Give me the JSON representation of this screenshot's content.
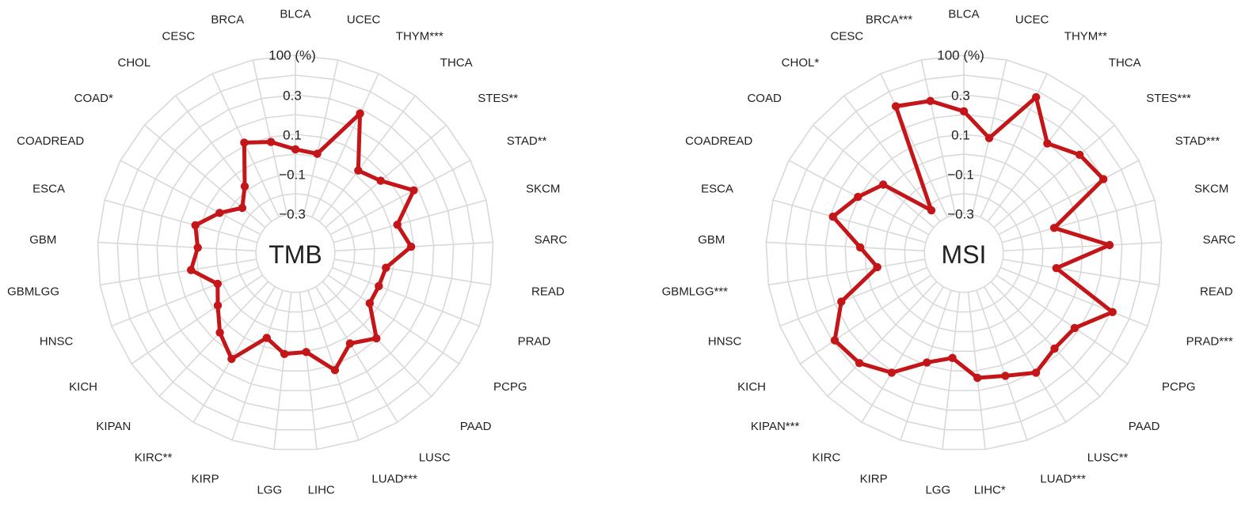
{
  "colors": {
    "line": "#c41518",
    "grid": "#d9d9d9",
    "text": "#222222",
    "background": "#ffffff"
  },
  "chart_data": [
    {
      "type": "radar",
      "title": "TMB",
      "ring_labels": [
        "100 (%)",
        "0.3",
        "0.1",
        "-0.1",
        "-0.3"
      ],
      "rlim": [
        -0.3,
        0.3
      ],
      "grid": true,
      "categories": [
        "BLCA",
        "UCEC",
        "THYM***",
        "THCA",
        "STES**",
        "STAD**",
        "SKCM",
        "SARC",
        "READ",
        "PRAD",
        "PCPG",
        "PAAD",
        "LUSC",
        "LUAD***",
        "LIHC",
        "LGG",
        "KIRP",
        "KIRC**",
        "KIPAN",
        "KICH",
        "HNSC",
        "GBMLGG",
        "GBM",
        "ESCA",
        "COADREAD",
        "COAD*",
        "CHOL",
        "CESC",
        "BRCA"
      ],
      "series": [
        {
          "values": [
            0.02,
            0.01,
            0.27,
            0.02,
            0.06,
            0.17,
            0.03,
            0.08,
            -0.04,
            -0.05,
            -0.05,
            0.09,
            0.03,
            0.12,
            0.0,
            0.01,
            -0.05,
            0.12,
            0.05,
            -0.03,
            -0.08,
            0.03,
            -0.01,
            0.02,
            -0.07,
            -0.15,
            -0.08,
            0.11,
            0.07
          ]
        }
      ]
    },
    {
      "type": "radar",
      "title": "MSI",
      "ring_labels": [
        "100 (%)",
        "0.3",
        "0.1",
        "-0.1",
        "-0.3"
      ],
      "rlim": [
        -0.3,
        0.3
      ],
      "grid": true,
      "categories": [
        "BLCA",
        "UCEC",
        "THYM**",
        "THCA",
        "STES***",
        "STAD***",
        "SKCM",
        "SARC",
        "READ",
        "PRAD***",
        "PCPG",
        "PAAD",
        "LUSC**",
        "LUAD***",
        "LIHC*",
        "LGG",
        "KIRP",
        "KIRC",
        "KIPAN***",
        "KICH",
        "HNSC",
        "GBMLGG***",
        "GBM",
        "ESCA",
        "COADREAD",
        "COAD",
        "CHOL*",
        "CESC",
        "BRCA***"
      ],
      "series": [
        {
          "values": [
            0.21,
            0.09,
            0.36,
            0.19,
            0.26,
            0.29,
            -0.03,
            0.23,
            -0.03,
            0.3,
            0.17,
            0.16,
            0.2,
            0.15,
            0.13,
            0.03,
            0.08,
            0.2,
            0.26,
            0.28,
            0.16,
            -0.06,
            0.02,
            0.18,
            0.1,
            0.03,
            -0.23,
            0.31,
            0.28
          ]
        }
      ]
    }
  ]
}
